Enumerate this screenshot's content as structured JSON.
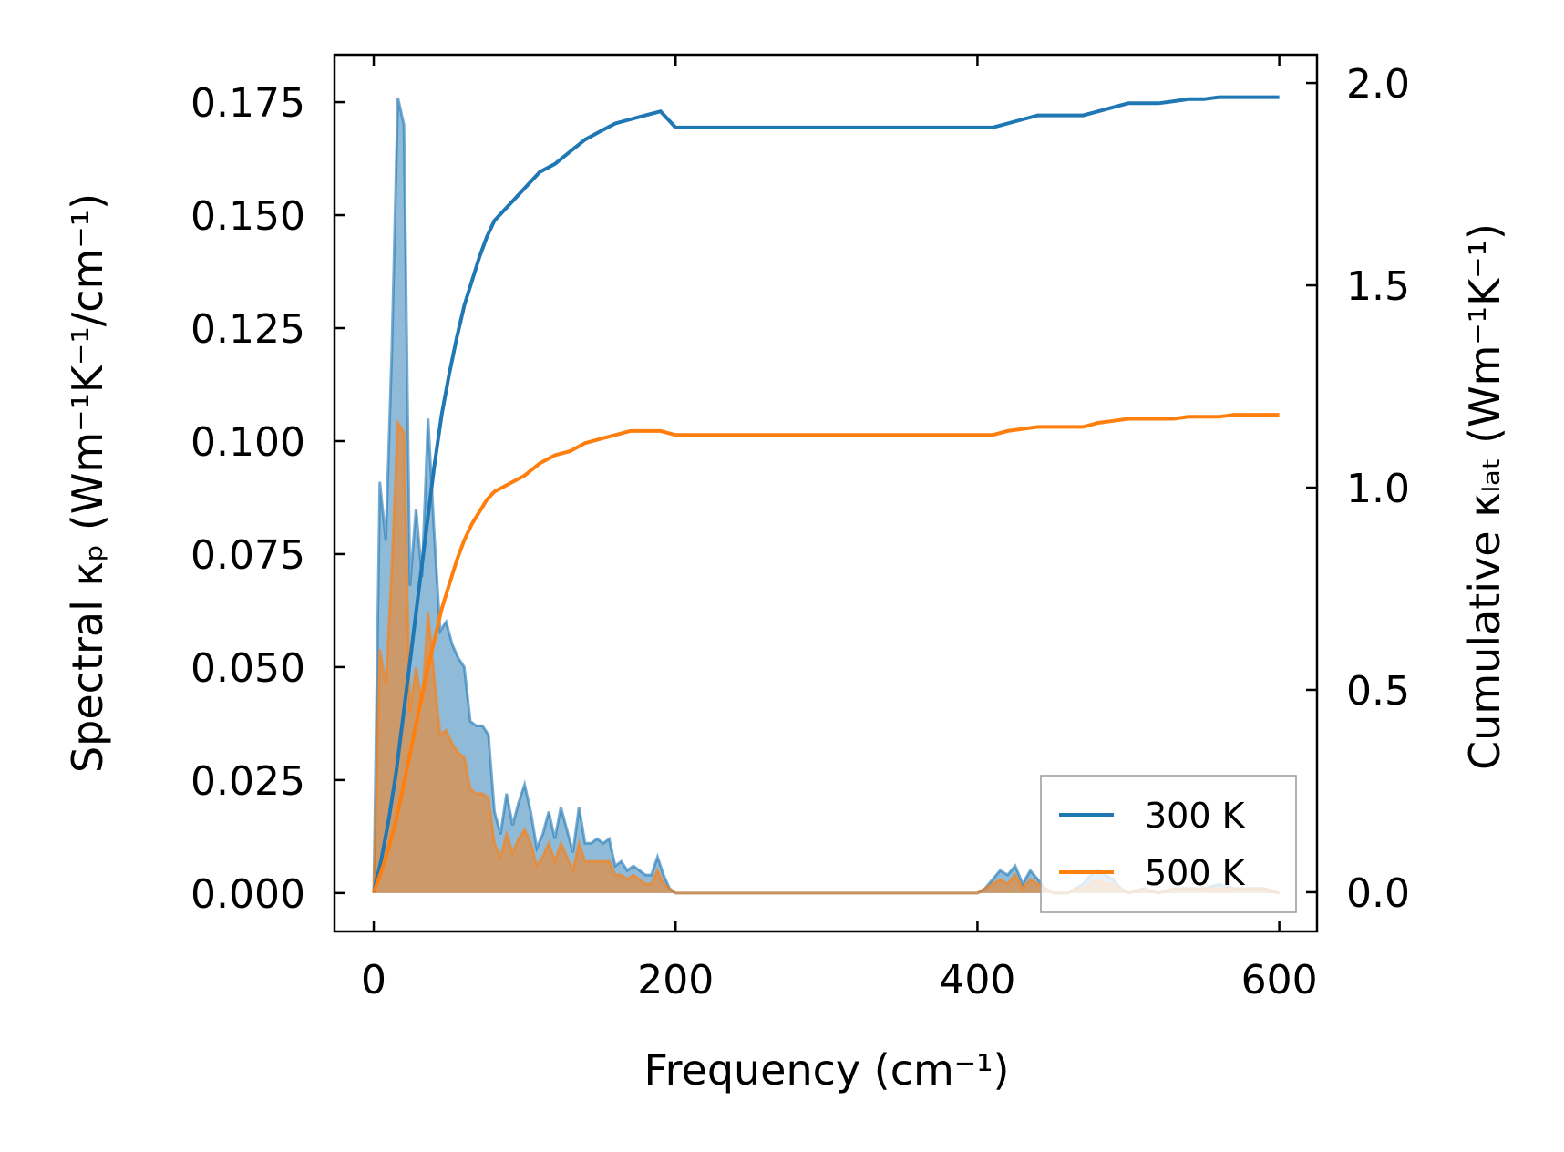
{
  "chart_data": {
    "type": "line",
    "title": "",
    "xlabel": "Frequency (cm⁻¹)",
    "ylabel_left": "Spectral κₚ (Wm⁻¹K⁻¹/cm⁻¹)",
    "ylabel_right": "Cumulative κₗₐₜ (Wm⁻¹K⁻¹)",
    "xlim": [
      -26,
      625
    ],
    "ylim_left": [
      -0.0085,
      0.1855
    ],
    "ylim_right": [
      -0.097,
      2.07
    ],
    "x_ticks": [
      0,
      200,
      400,
      600
    ],
    "y_ticks_left": [
      0.0,
      0.025,
      0.05,
      0.075,
      0.1,
      0.125,
      0.15,
      0.175
    ],
    "y_tick_labels_left": [
      "0.000",
      "0.025",
      "0.050",
      "0.075",
      "0.100",
      "0.125",
      "0.150",
      "0.175"
    ],
    "y_ticks_right": [
      0.0,
      0.5,
      1.0,
      1.5,
      2.0
    ],
    "y_tick_labels_right": [
      "0.0",
      "0.5",
      "1.0",
      "1.5",
      "2.0"
    ],
    "legend_position": "lower-right",
    "series": [
      {
        "name": "300 K",
        "color": "#1f77b4",
        "spectral": {
          "x": [
            0,
            4,
            8,
            12,
            16,
            20,
            24,
            28,
            32,
            36,
            40,
            44,
            48,
            52,
            56,
            60,
            64,
            68,
            72,
            76,
            80,
            84,
            88,
            92,
            96,
            100,
            104,
            108,
            112,
            116,
            120,
            124,
            128,
            132,
            136,
            140,
            144,
            148,
            152,
            156,
            160,
            164,
            168,
            172,
            176,
            180,
            184,
            188,
            192,
            196,
            200,
            205,
            210,
            300,
            400,
            405,
            410,
            415,
            420,
            425,
            430,
            435,
            440,
            445,
            450,
            455,
            460,
            465,
            470,
            475,
            480,
            485,
            490,
            495,
            500,
            510,
            520,
            530,
            540,
            550,
            560,
            570,
            580,
            590,
            600
          ],
          "values": [
            0,
            0.091,
            0.078,
            0.12,
            0.176,
            0.17,
            0.068,
            0.085,
            0.07,
            0.105,
            0.08,
            0.058,
            0.06,
            0.055,
            0.052,
            0.05,
            0.038,
            0.037,
            0.037,
            0.035,
            0.018,
            0.013,
            0.022,
            0.015,
            0.02,
            0.024,
            0.018,
            0.01,
            0.013,
            0.018,
            0.012,
            0.019,
            0.014,
            0.009,
            0.019,
            0.011,
            0.011,
            0.012,
            0.011,
            0.012,
            0.006,
            0.007,
            0.005,
            0.006,
            0.005,
            0.004,
            0.004,
            0.008,
            0.004,
            0.001,
            0,
            0,
            0,
            0,
            0,
            0.001,
            0.003,
            0.005,
            0.004,
            0.006,
            0.002,
            0.005,
            0.003,
            0.001,
            0,
            0,
            0,
            0.001,
            0.002,
            0.004,
            0.005,
            0.004,
            0.003,
            0.001,
            0,
            0.001,
            0,
            0.001,
            0.001,
            0.001,
            0.002,
            0.001,
            0.001,
            0.001,
            0
          ],
          "cumulative_x": [
            0,
            5,
            10,
            15,
            20,
            25,
            30,
            35,
            40,
            45,
            50,
            55,
            60,
            65,
            70,
            75,
            80,
            85,
            90,
            95,
            100,
            110,
            120,
            130,
            140,
            150,
            160,
            170,
            180,
            190,
            200,
            300,
            400,
            410,
            420,
            430,
            440,
            450,
            460,
            470,
            480,
            490,
            500,
            510,
            520,
            530,
            540,
            550,
            560,
            570,
            580,
            590,
            600
          ],
          "cumulative": [
            0,
            0.08,
            0.18,
            0.3,
            0.45,
            0.6,
            0.75,
            0.9,
            1.05,
            1.18,
            1.28,
            1.37,
            1.45,
            1.51,
            1.57,
            1.62,
            1.66,
            1.68,
            1.7,
            1.72,
            1.74,
            1.78,
            1.8,
            1.83,
            1.86,
            1.88,
            1.9,
            1.91,
            1.92,
            1.93,
            1.89,
            1.89,
            1.89,
            1.89,
            1.9,
            1.91,
            1.92,
            1.92,
            1.92,
            1.92,
            1.93,
            1.94,
            1.95,
            1.95,
            1.95,
            1.955,
            1.96,
            1.96,
            1.965,
            1.965,
            1.965,
            1.965,
            1.965
          ]
        }
      },
      {
        "name": "500 K",
        "color": "#ff7f0e",
        "spectral": {
          "x": [
            0,
            4,
            8,
            12,
            16,
            20,
            24,
            28,
            32,
            36,
            40,
            44,
            48,
            52,
            56,
            60,
            64,
            68,
            72,
            76,
            80,
            84,
            88,
            92,
            96,
            100,
            104,
            108,
            112,
            116,
            120,
            124,
            128,
            132,
            136,
            140,
            144,
            148,
            152,
            156,
            160,
            164,
            168,
            172,
            176,
            180,
            184,
            188,
            192,
            196,
            200,
            205,
            210,
            300,
            400,
            405,
            410,
            415,
            420,
            425,
            430,
            435,
            440,
            445,
            450,
            455,
            460,
            465,
            470,
            475,
            480,
            485,
            490,
            495,
            500,
            510,
            520,
            530,
            540,
            550,
            560,
            570,
            580,
            590,
            600
          ],
          "values": [
            0,
            0.054,
            0.046,
            0.072,
            0.104,
            0.102,
            0.04,
            0.05,
            0.042,
            0.062,
            0.048,
            0.035,
            0.036,
            0.033,
            0.031,
            0.03,
            0.023,
            0.022,
            0.022,
            0.021,
            0.011,
            0.008,
            0.013,
            0.009,
            0.012,
            0.014,
            0.011,
            0.006,
            0.008,
            0.011,
            0.007,
            0.011,
            0.008,
            0.005,
            0.011,
            0.007,
            0.007,
            0.007,
            0.007,
            0.007,
            0.004,
            0.004,
            0.003,
            0.004,
            0.003,
            0.002,
            0.002,
            0.005,
            0.002,
            0.001,
            0,
            0,
            0,
            0,
            0,
            0.001,
            0.002,
            0.003,
            0.002,
            0.004,
            0.001,
            0.003,
            0.002,
            0.001,
            0,
            0,
            0,
            0.001,
            0.001,
            0.002,
            0.003,
            0.002,
            0.002,
            0.001,
            0,
            0.001,
            0,
            0.001,
            0.001,
            0.001,
            0.001,
            0.001,
            0.001,
            0.001,
            0
          ],
          "cumulative_x": [
            0,
            5,
            10,
            15,
            20,
            25,
            30,
            35,
            40,
            45,
            50,
            55,
            60,
            65,
            70,
            75,
            80,
            85,
            90,
            95,
            100,
            110,
            120,
            130,
            140,
            150,
            160,
            170,
            180,
            190,
            200,
            300,
            400,
            410,
            420,
            430,
            440,
            450,
            460,
            470,
            480,
            490,
            500,
            510,
            520,
            530,
            540,
            550,
            560,
            570,
            580,
            590,
            600
          ],
          "cumulative": [
            0,
            0.05,
            0.11,
            0.18,
            0.27,
            0.36,
            0.45,
            0.54,
            0.62,
            0.7,
            0.76,
            0.82,
            0.87,
            0.91,
            0.94,
            0.97,
            0.99,
            1.0,
            1.01,
            1.02,
            1.03,
            1.06,
            1.08,
            1.09,
            1.11,
            1.12,
            1.13,
            1.14,
            1.14,
            1.14,
            1.13,
            1.13,
            1.13,
            1.13,
            1.14,
            1.145,
            1.15,
            1.15,
            1.15,
            1.15,
            1.16,
            1.165,
            1.17,
            1.17,
            1.17,
            1.17,
            1.175,
            1.175,
            1.175,
            1.18,
            1.18,
            1.18,
            1.18
          ]
        }
      }
    ]
  }
}
